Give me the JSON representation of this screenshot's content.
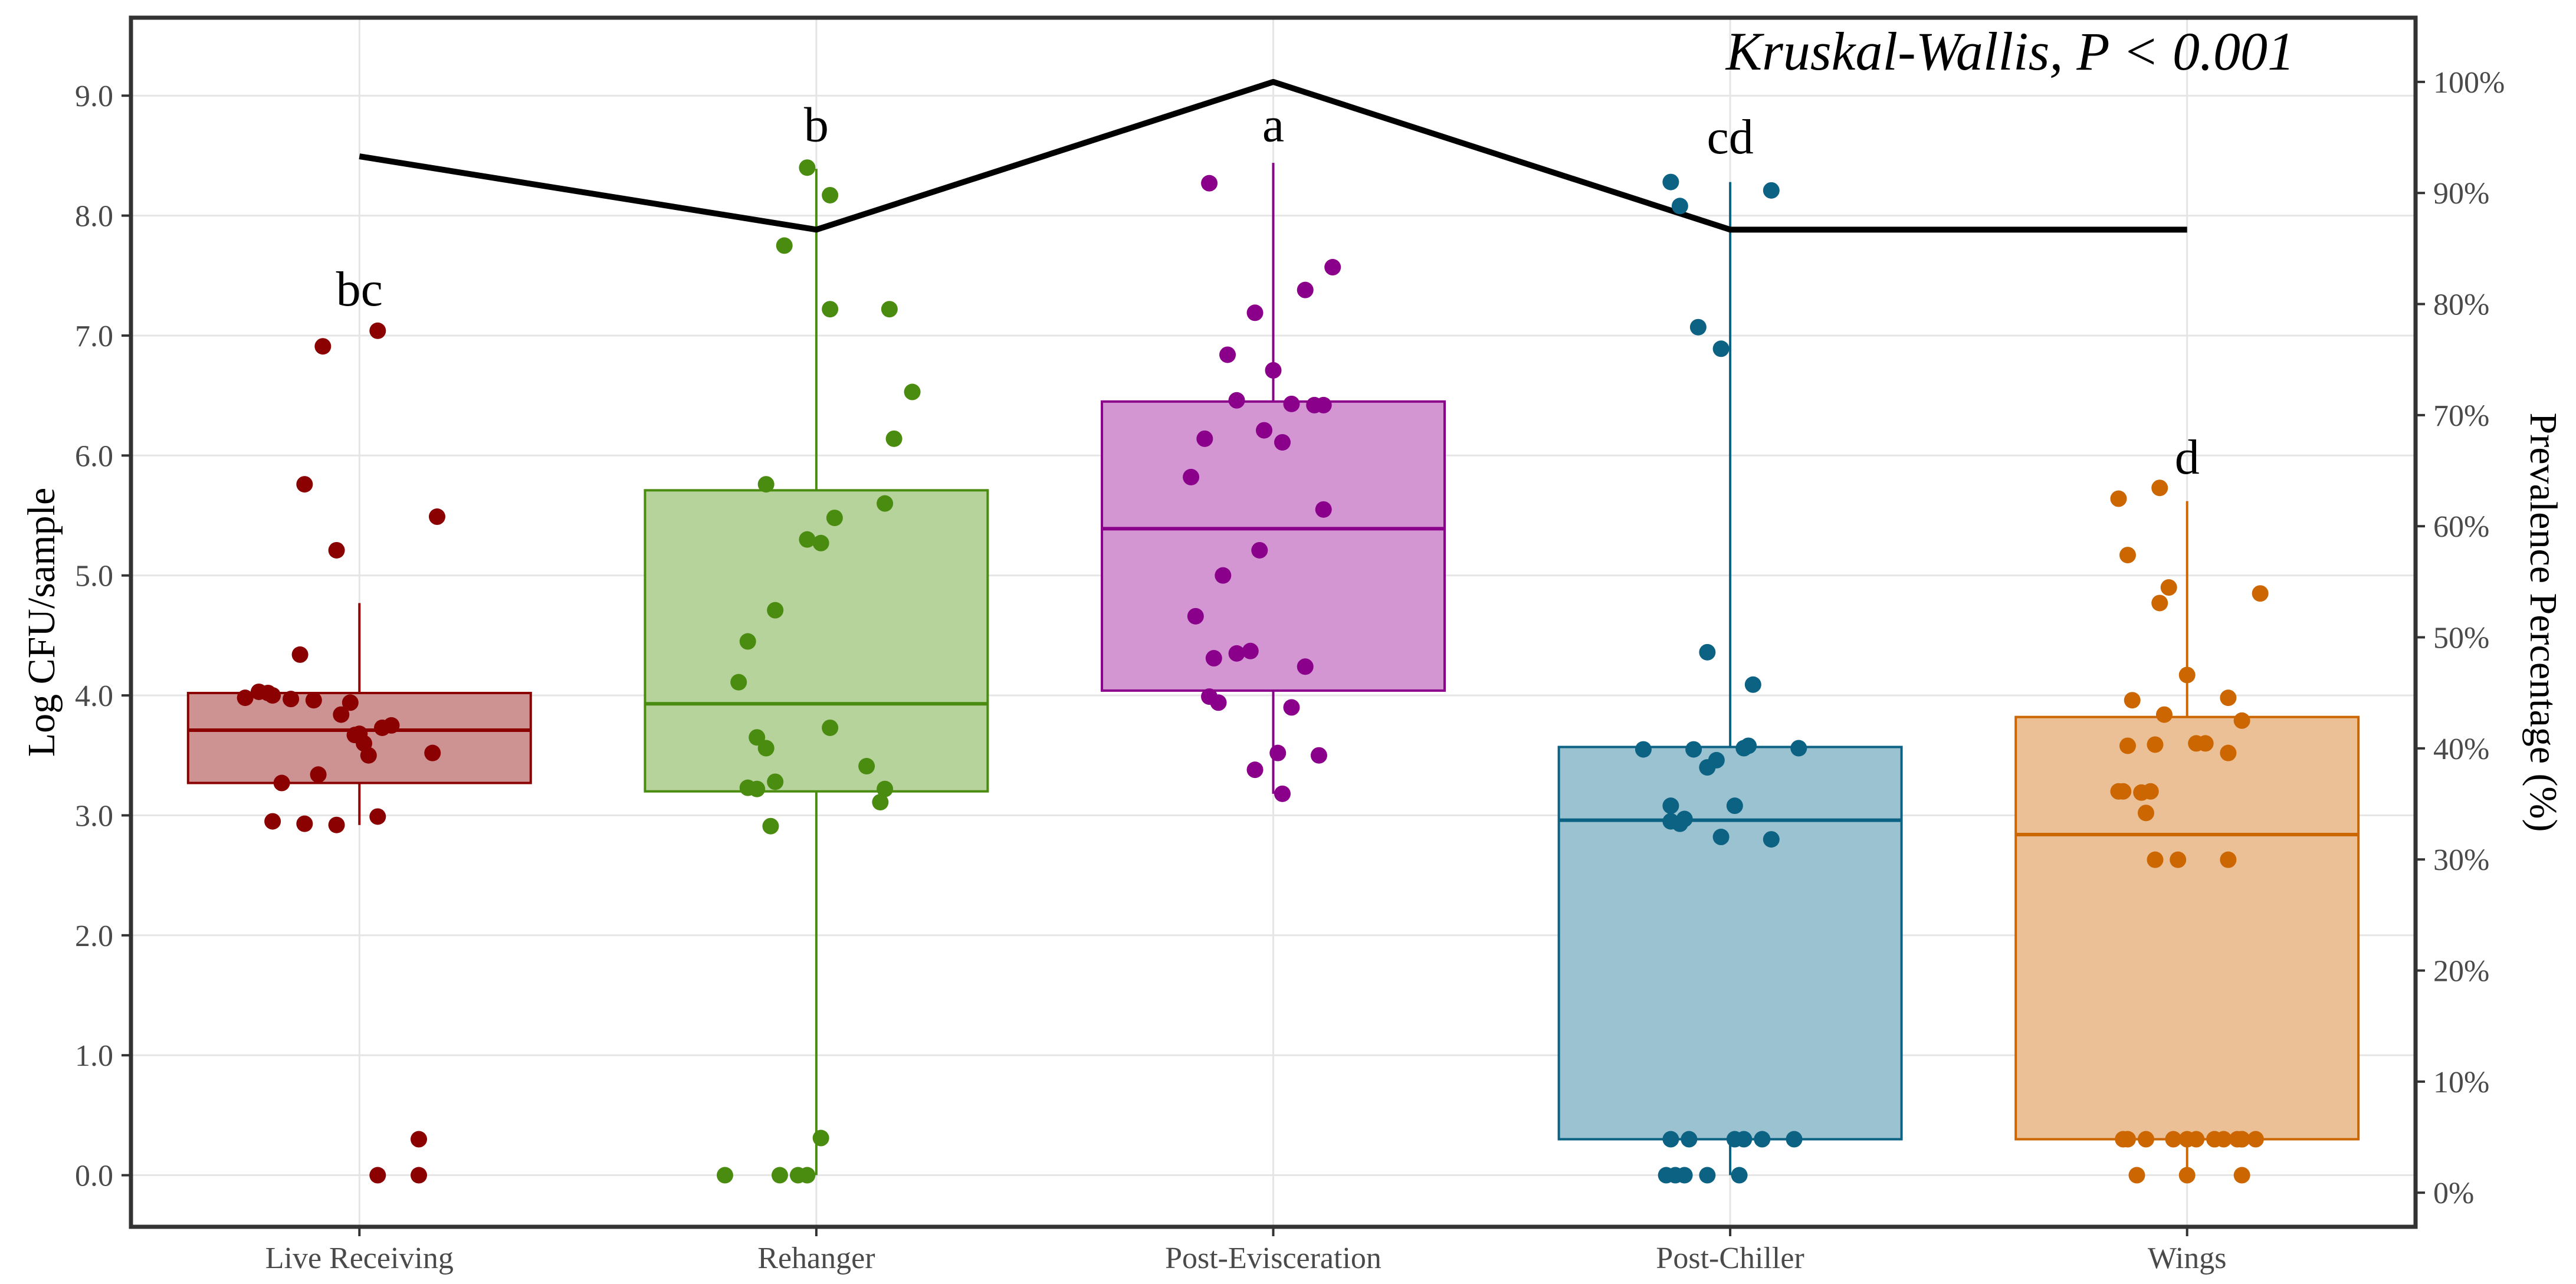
{
  "chart_data": {
    "type": "boxplot",
    "title": "",
    "annotation": "Kruskal-Wallis, P < 0.001",
    "xlabel": "",
    "ylabel": "Log CFU/sample",
    "y2label": "Prevalence Percentage (%)",
    "ylim": [
      -0.43,
      9.65
    ],
    "y2lim": [
      -3.07,
      105.78
    ],
    "yticks": [
      0,
      1,
      2,
      3,
      4,
      5,
      6,
      7,
      8,
      9
    ],
    "yticklabels": [
      "0.0",
      "1.0",
      "2.0",
      "3.0",
      "4.0",
      "5.0",
      "6.0",
      "7.0",
      "8.0",
      "9.0"
    ],
    "y2ticks": [
      0,
      10,
      20,
      30,
      40,
      50,
      60,
      70,
      80,
      90,
      100
    ],
    "y2ticklabels": [
      "0%",
      "10%",
      "20%",
      "30%",
      "40%",
      "50%",
      "60%",
      "70%",
      "80%",
      "90%",
      "100%"
    ],
    "grid": true,
    "categories": [
      "Live Receiving",
      "Rehanger",
      "Post-Evisceration",
      "Post-Chiller",
      "Wings"
    ],
    "boxes": [
      {
        "name": "Live Receiving",
        "color": "#8B0000",
        "fill": "#CD9393",
        "whisker_low": 2.92,
        "q1": 3.27,
        "median": 3.71,
        "q3": 4.02,
        "whisker_high": 4.77,
        "letter": "bc",
        "letter_y": 7.25
      },
      {
        "name": "Rehanger",
        "color": "#4A8C10",
        "fill": "#B5D39B",
        "whisker_low": 0.0,
        "q1": 3.2,
        "median": 3.93,
        "q3": 5.71,
        "whisker_high": 8.39,
        "letter": "b",
        "letter_y": 8.62
      },
      {
        "name": "Post-Evisceration",
        "color": "#8B008B",
        "fill": "#D396D3",
        "whisker_low": 3.18,
        "q1": 4.04,
        "median": 5.39,
        "q3": 6.45,
        "whisker_high": 8.44,
        "letter": "a",
        "letter_y": 8.62
      },
      {
        "name": "Post-Chiller",
        "color": "#0B6283",
        "fill": "#9BC2D1",
        "whisker_low": 0.0,
        "q1": 0.3,
        "median": 2.96,
        "q3": 3.57,
        "whisker_high": 8.28,
        "letter": "cd",
        "letter_y": 8.52
      },
      {
        "name": "Wings",
        "color": "#CC6600",
        "fill": "#EBC096",
        "whisker_low": 0.0,
        "q1": 0.3,
        "median": 2.84,
        "q3": 3.82,
        "whisker_high": 5.62,
        "letter": "d",
        "letter_y": 5.85
      }
    ],
    "points": [
      {
        "group": "Live Receiving",
        "offsets": [
          -0.08,
          0.04,
          -0.12,
          -0.05,
          -0.19,
          0.17,
          -0.13,
          -0.25,
          -0.2,
          -0.22,
          -0.15,
          -0.02,
          -0.1,
          -0.04,
          -0.01,
          0.0,
          0.05,
          0.07,
          0.01,
          -0.17,
          -0.09,
          0.16,
          -0.19,
          -0.12,
          0.04,
          -0.05,
          0.02,
          0.13
        ],
        "values": [
          6.91,
          7.04,
          5.76,
          5.21,
          4.0,
          5.49,
          4.34,
          3.98,
          4.02,
          4.03,
          3.97,
          3.94,
          3.96,
          3.84,
          3.67,
          3.68,
          3.73,
          3.75,
          3.6,
          3.27,
          3.34,
          3.52,
          2.95,
          2.93,
          2.99,
          2.92,
          3.5,
          0.3
        ]
      },
      {
        "group": "Live Receiving",
        "offsets": [
          0.04,
          0.13
        ],
        "values": [
          0.0,
          0.0
        ]
      },
      {
        "group": "Rehanger",
        "offsets": [
          -0.02,
          0.03,
          -0.07,
          0.03,
          0.16,
          0.17,
          0.21,
          0.15,
          -0.11,
          -0.09,
          -0.15,
          -0.17,
          -0.11,
          -0.13,
          -0.09,
          -0.15,
          -0.13,
          -0.02,
          0.01,
          0.04,
          0.15,
          0.11,
          0.14,
          0.03,
          -0.1,
          -0.08,
          -0.2,
          -0.04,
          -0.02,
          0.01
        ],
        "values": [
          8.4,
          8.17,
          7.75,
          7.22,
          7.22,
          6.14,
          6.53,
          5.6,
          5.76,
          4.71,
          4.45,
          4.11,
          3.56,
          3.65,
          3.28,
          3.23,
          3.22,
          5.3,
          5.27,
          5.48,
          3.22,
          3.41,
          3.11,
          3.73,
          2.91,
          0.0,
          0.0,
          0.0,
          0.0,
          0.31
        ]
      },
      {
        "group": "Post-Evisceration",
        "offsets": [
          -0.14,
          -0.1,
          -0.04,
          0.07,
          0.13,
          0.11,
          0.0,
          0.04,
          -0.08,
          -0.02,
          0.02,
          0.09,
          0.11,
          -0.18,
          -0.15,
          -0.11,
          -0.17,
          -0.13,
          -0.03,
          -0.05,
          -0.08,
          -0.14,
          -0.12,
          0.07,
          0.04,
          0.01,
          0.1,
          0.02,
          -0.04
        ],
        "values": [
          8.27,
          6.84,
          7.19,
          7.38,
          7.57,
          6.42,
          6.71,
          6.43,
          6.46,
          6.21,
          6.11,
          6.42,
          5.55,
          5.82,
          6.14,
          5.0,
          4.66,
          4.31,
          5.21,
          4.37,
          4.35,
          3.99,
          3.94,
          4.24,
          3.9,
          3.52,
          3.5,
          3.18,
          3.38
        ]
      },
      {
        "group": "Post-Chiller",
        "offsets": [
          -0.13,
          -0.11,
          0.09,
          -0.02,
          -0.07,
          -0.05,
          -0.19,
          -0.05,
          -0.03,
          0.03,
          0.04,
          -0.08,
          -0.13,
          -0.11,
          0.01,
          -0.13,
          -0.1,
          -0.02,
          0.09,
          0.05,
          0.15,
          -0.13,
          -0.09,
          0.01,
          0.03,
          0.07,
          0.14,
          -0.1,
          -0.05,
          -0.14,
          -0.12,
          0.02
        ],
        "values": [
          8.28,
          8.08,
          8.21,
          6.89,
          7.07,
          4.36,
          3.55,
          3.4,
          3.46,
          3.56,
          3.58,
          3.55,
          3.08,
          2.93,
          3.08,
          2.95,
          2.97,
          2.82,
          2.8,
          4.09,
          3.56,
          0.3,
          0.3,
          0.3,
          0.3,
          0.3,
          0.3,
          0.0,
          0.0,
          0.0,
          0.0,
          0.0
        ]
      },
      {
        "group": "Wings",
        "offsets": [
          -0.15,
          -0.13,
          -0.06,
          -0.04,
          -0.06,
          0.0,
          0.16,
          -0.12,
          -0.05,
          0.02,
          0.04,
          -0.07,
          -0.13,
          -0.09,
          0.09,
          0.12,
          0.09,
          -0.14,
          -0.15,
          -0.08,
          -0.1,
          -0.07,
          -0.02,
          0.09,
          -0.13,
          0.11,
          0.15,
          0.0,
          -0.14,
          -0.09,
          -0.03,
          0.02,
          0.06,
          0.06,
          0.08,
          0.12,
          0.12,
          0.12,
          -0.11,
          0.0,
          0.12
        ],
        "values": [
          5.64,
          5.17,
          5.73,
          4.9,
          4.77,
          4.17,
          4.85,
          3.96,
          3.84,
          3.6,
          3.6,
          3.59,
          3.58,
          3.02,
          3.52,
          3.79,
          3.98,
          3.2,
          3.2,
          3.2,
          3.19,
          2.63,
          2.63,
          2.63,
          0.3,
          0.3,
          0.3,
          0.3,
          0.3,
          0.3,
          0.3,
          0.3,
          0.3,
          0.3,
          0.3,
          0.3,
          0.3,
          0.3,
          0.0,
          0.0,
          0.0
        ]
      }
    ],
    "prevalence_series": {
      "name": "Prevalence Percentage",
      "categories": [
        "Live Receiving",
        "Rehanger",
        "Post-Evisceration",
        "Post-Chiller",
        "Wings"
      ],
      "values": [
        93.3,
        86.7,
        100.0,
        86.7,
        86.7
      ],
      "color": "#000000"
    }
  }
}
